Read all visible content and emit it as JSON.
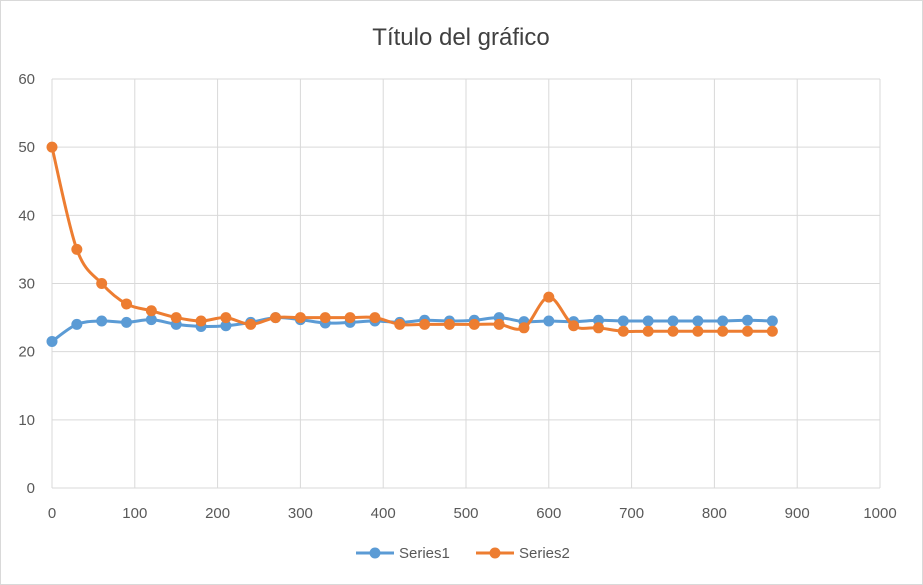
{
  "chart_data": {
    "type": "scatter",
    "title": "Título del gráfico",
    "xlabel": "",
    "ylabel": "",
    "xlim": [
      0,
      1000
    ],
    "ylim": [
      0,
      60
    ],
    "x_ticks": [
      0,
      100,
      200,
      300,
      400,
      500,
      600,
      700,
      800,
      900,
      1000
    ],
    "y_ticks": [
      0,
      10,
      20,
      30,
      40,
      50,
      60
    ],
    "grid": true,
    "smooth_lines": true,
    "legend_position": "bottom",
    "series": [
      {
        "name": "Series1",
        "color": "#5b9bd5",
        "x": [
          0,
          30,
          60,
          90,
          120,
          150,
          180,
          210,
          240,
          270,
          300,
          330,
          360,
          390,
          420,
          450,
          480,
          510,
          540,
          570,
          600,
          630,
          660,
          690,
          720,
          750,
          780,
          810,
          840,
          870
        ],
        "y": [
          21.5,
          24.0,
          24.5,
          24.3,
          24.7,
          24.0,
          23.7,
          23.8,
          24.3,
          25.0,
          24.7,
          24.2,
          24.3,
          24.5,
          24.3,
          24.6,
          24.5,
          24.6,
          25.0,
          24.4,
          24.5,
          24.4,
          24.6,
          24.5,
          24.5,
          24.5,
          24.5,
          24.5,
          24.6,
          24.5
        ]
      },
      {
        "name": "Series2",
        "color": "#ed7d31",
        "x": [
          0,
          30,
          60,
          90,
          120,
          150,
          180,
          210,
          240,
          270,
          300,
          330,
          360,
          390,
          420,
          450,
          480,
          510,
          540,
          570,
          600,
          630,
          660,
          690,
          720,
          750,
          780,
          810,
          840,
          870
        ],
        "y": [
          50.0,
          35.0,
          30.0,
          27.0,
          26.0,
          25.0,
          24.5,
          25.0,
          24.0,
          25.0,
          25.0,
          25.0,
          25.0,
          25.0,
          24.0,
          24.0,
          24.0,
          24.0,
          24.0,
          23.5,
          28.0,
          23.8,
          23.5,
          23.0,
          23.0,
          23.0,
          23.0,
          23.0,
          23.0,
          23.0
        ]
      }
    ]
  }
}
